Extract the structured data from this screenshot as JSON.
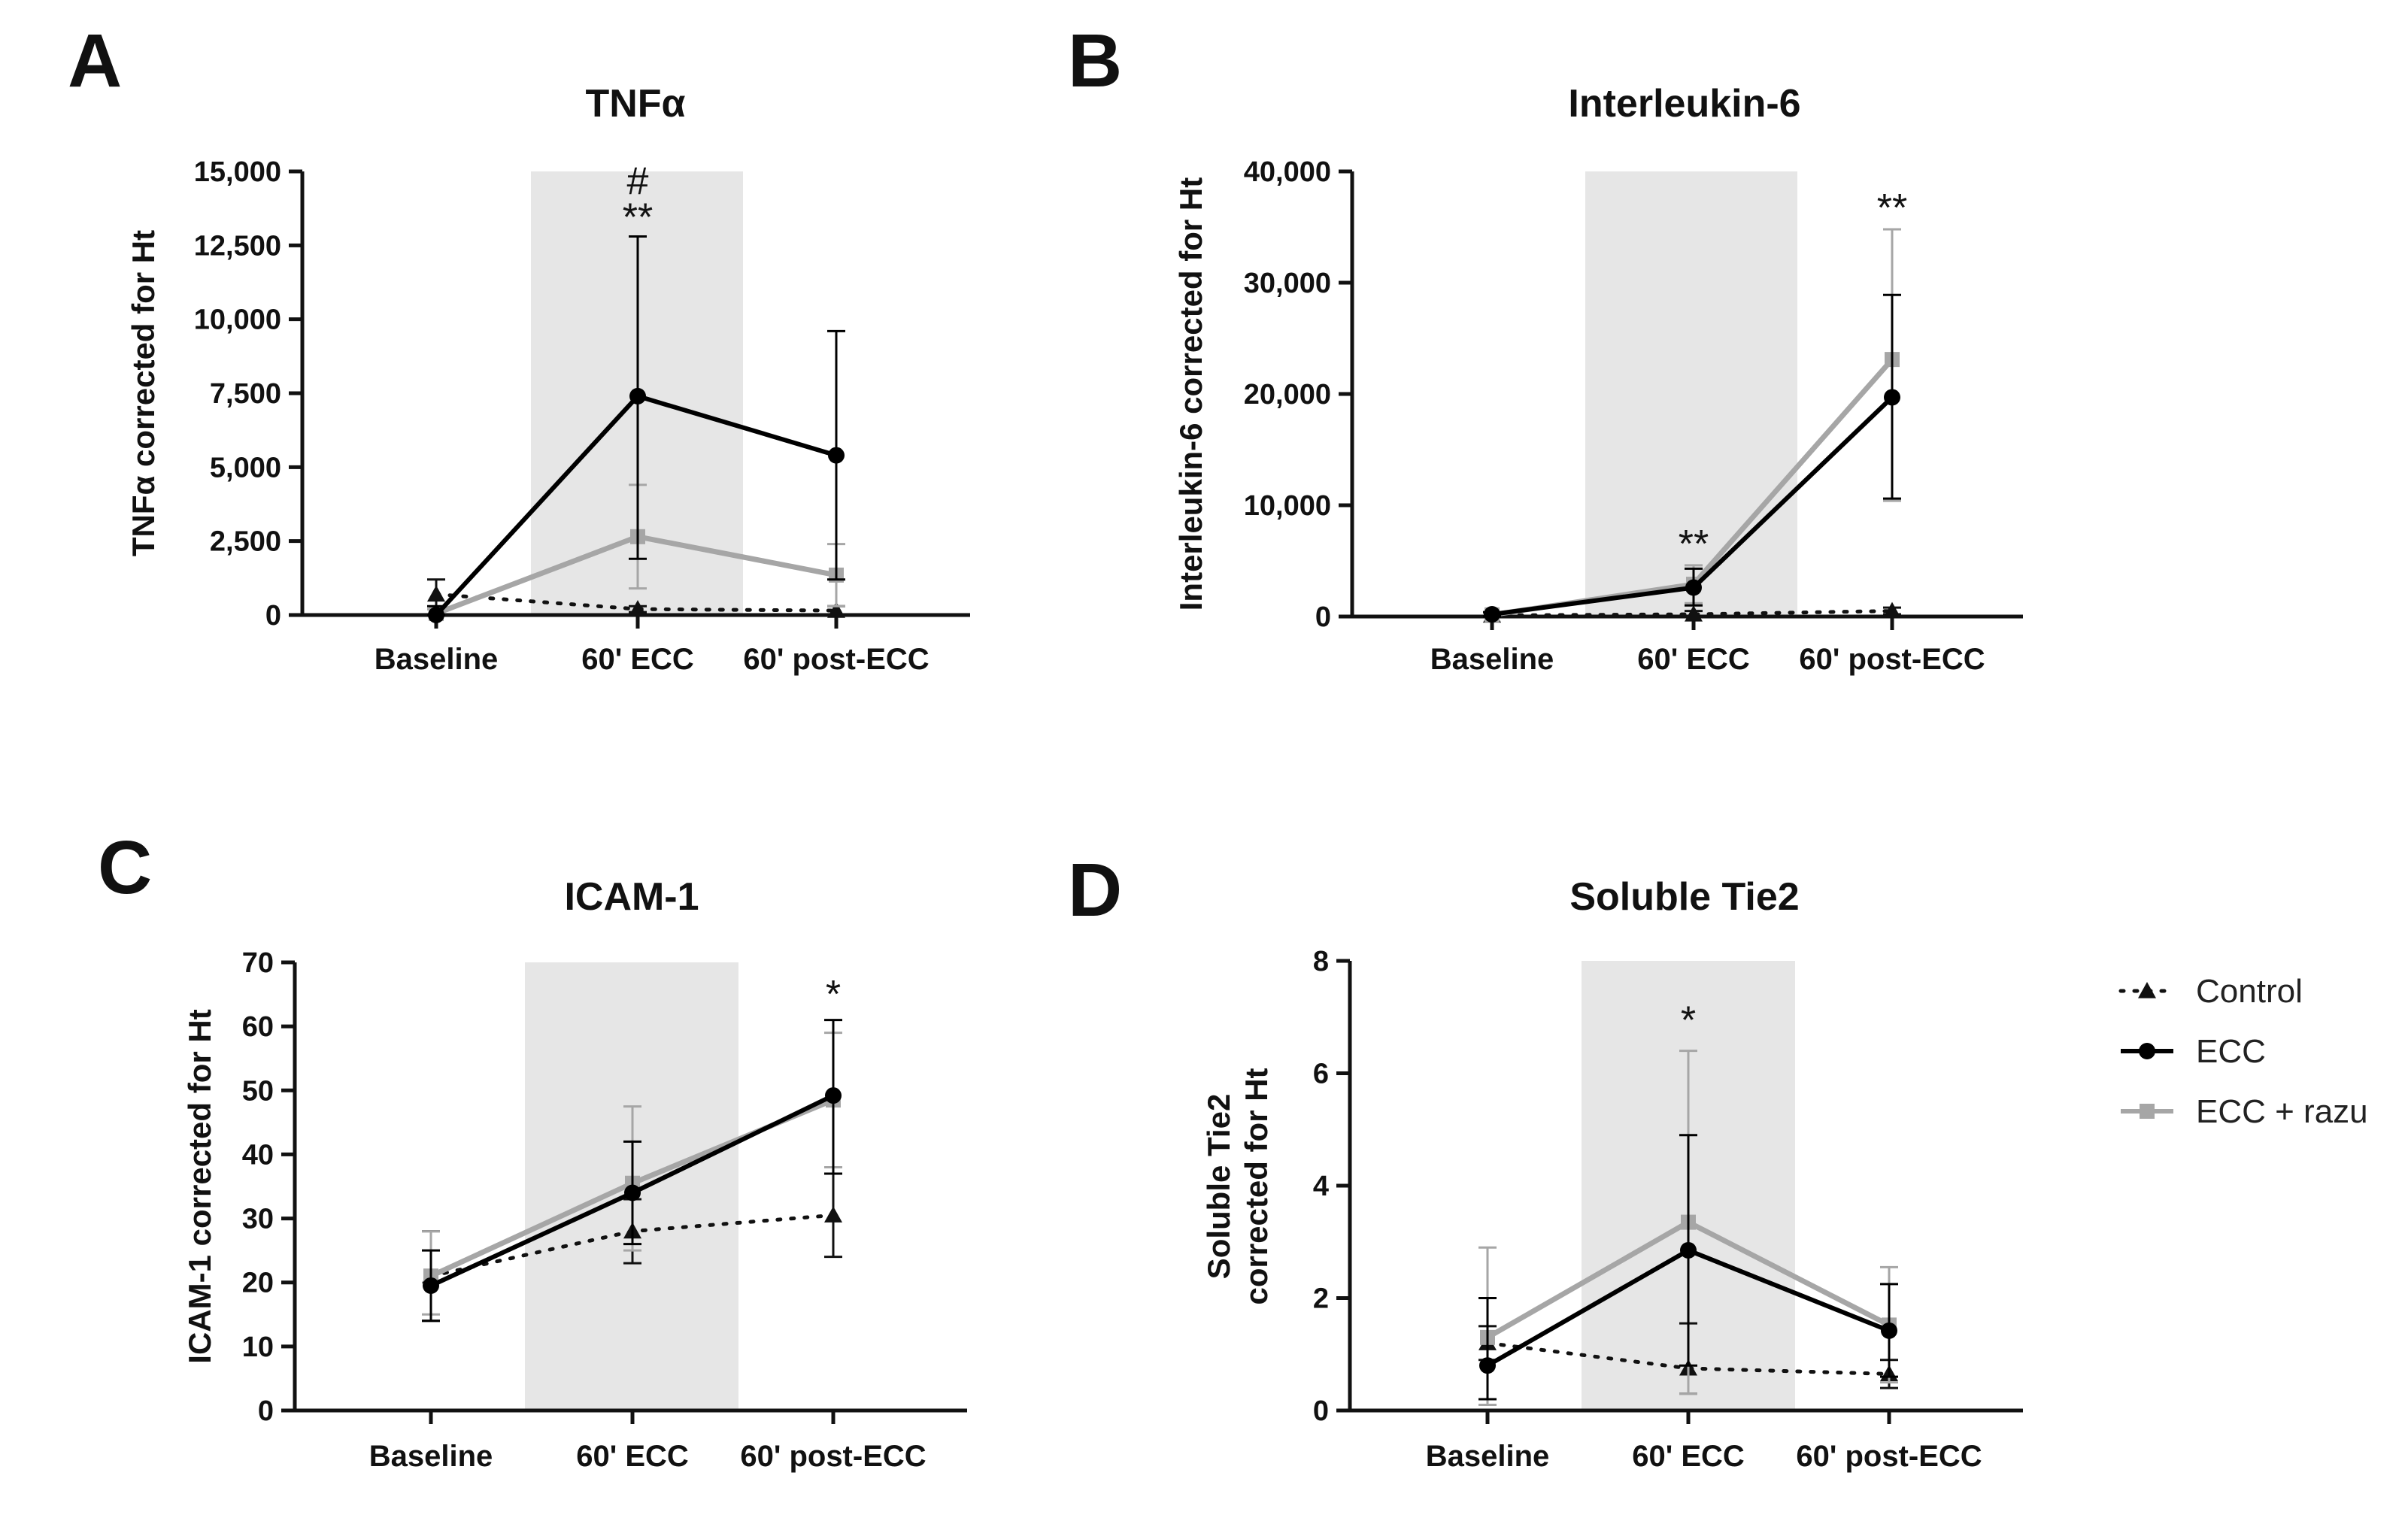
{
  "chart_data": [
    {
      "letter": "A",
      "type": "line",
      "title": "TNFα",
      "ylabel": "TNFα corrected for Ht",
      "ylabel_lines": [
        "TNFα corrected for Ht"
      ],
      "xlabel": "",
      "categories": [
        "Baseline",
        "60' ECC",
        "60' post-ECC"
      ],
      "ylim": [
        0,
        15000
      ],
      "yticks": [
        0,
        2500,
        5000,
        7500,
        10000,
        12500,
        15000
      ],
      "ytick_labels": [
        "0",
        "2,500",
        "5,000",
        "7,500",
        "10,000",
        "12,500",
        "15,000"
      ],
      "shaded_category": "60' ECC",
      "series": [
        {
          "name": "Control",
          "values": [
            700,
            200,
            150
          ],
          "err_hi": [
            1200,
            300,
            300
          ],
          "err_lo": [
            200,
            100,
            0
          ]
        },
        {
          "name": "ECC",
          "values": [
            0,
            7400,
            5400
          ],
          "err_hi": [
            300,
            12800,
            9600
          ],
          "err_lo": [
            0,
            1900,
            1200
          ]
        },
        {
          "name": "ECC + razu",
          "values": [
            50,
            2650,
            1350
          ],
          "err_hi": [
            200,
            4400,
            2400
          ],
          "err_lo": [
            0,
            900,
            300
          ]
        }
      ],
      "annotations": [
        {
          "category": "60' ECC",
          "lines": [
            "#",
            "**"
          ],
          "at_value": 12800
        }
      ]
    },
    {
      "letter": "B",
      "type": "line",
      "title": "Interleukin-6",
      "ylabel": "Interleukin-6 corrected for Ht",
      "ylabel_lines": [
        "Interleukin-6 corrected for Ht"
      ],
      "xlabel": "",
      "categories": [
        "Baseline",
        "60' ECC",
        "60' post-ECC"
      ],
      "ylim": [
        0,
        40000
      ],
      "yticks": [
        0,
        10000,
        20000,
        30000,
        40000
      ],
      "ytick_labels": [
        "0",
        "10,000",
        "20,000",
        "30,000",
        "40,000"
      ],
      "shaded_category": "60' ECC",
      "series": [
        {
          "name": "Control",
          "values": [
            100,
            200,
            500
          ],
          "err_hi": [
            300,
            500,
            800
          ],
          "err_lo": [
            0,
            0,
            200
          ]
        },
        {
          "name": "ECC",
          "values": [
            200,
            2600,
            19700
          ],
          "err_hi": [
            400,
            4300,
            28900
          ],
          "err_lo": [
            0,
            1000,
            10600
          ]
        },
        {
          "name": "ECC + razu",
          "values": [
            150,
            2900,
            23100
          ],
          "err_hi": [
            300,
            4600,
            34800
          ],
          "err_lo": [
            0,
            1200,
            10400
          ]
        }
      ],
      "annotations": [
        {
          "category": "60' ECC",
          "lines": [
            "**"
          ],
          "at_value": 4800
        },
        {
          "category": "60' post-ECC",
          "lines": [
            "**"
          ],
          "at_value": 35000
        }
      ]
    },
    {
      "letter": "C",
      "type": "line",
      "title": "ICAM-1",
      "ylabel": "ICAM-1 corrected for Ht",
      "ylabel_lines": [
        "ICAM-1 corrected for Ht"
      ],
      "xlabel": "",
      "categories": [
        "Baseline",
        "60' ECC",
        "60' post-ECC"
      ],
      "ylim": [
        0,
        70
      ],
      "yticks": [
        0,
        10,
        20,
        30,
        40,
        50,
        60,
        70
      ],
      "ytick_labels": [
        "0",
        "10",
        "20",
        "30",
        "40",
        "50",
        "60",
        "70"
      ],
      "shaded_category": "60' ECC",
      "series": [
        {
          "name": "Control",
          "values": [
            21,
            28,
            30.5
          ],
          "err_hi": [
            28,
            33,
            37
          ],
          "err_lo": [
            14,
            23,
            24
          ]
        },
        {
          "name": "ECC",
          "values": [
            19.5,
            34,
            49.2
          ],
          "err_hi": [
            25,
            42,
            61
          ],
          "err_lo": [
            14,
            26,
            37
          ]
        },
        {
          "name": "ECC + razu",
          "values": [
            21,
            35.5,
            48.5
          ],
          "err_hi": [
            28,
            47.5,
            59
          ],
          "err_lo": [
            15,
            25,
            38
          ]
        }
      ],
      "annotations": [
        {
          "category": "60' post-ECC",
          "lines": [
            "*"
          ],
          "at_value": 62
        }
      ]
    },
    {
      "letter": "D",
      "type": "line",
      "title": "Soluble Tie2",
      "ylabel": "Soluble Tie2 corrected for Ht",
      "ylabel_lines": [
        "Soluble Tie2",
        "corrected for Ht"
      ],
      "xlabel": "",
      "categories": [
        "Baseline",
        "60' ECC",
        "60' post-ECC"
      ],
      "ylim": [
        0,
        8
      ],
      "yticks": [
        0,
        2,
        4,
        6,
        8
      ],
      "ytick_labels": [
        "0",
        "2",
        "4",
        "6",
        "8"
      ],
      "shaded_category": "60' ECC",
      "series": [
        {
          "name": "Control",
          "values": [
            1.2,
            0.75,
            0.65
          ],
          "err_hi": [
            1.5,
            1.55,
            0.9
          ],
          "err_lo": [
            0.9,
            0.3,
            0.4
          ]
        },
        {
          "name": "ECC",
          "values": [
            0.8,
            2.85,
            1.42
          ],
          "err_hi": [
            2.0,
            4.9,
            2.25
          ],
          "err_lo": [
            0.2,
            0.8,
            0.6
          ]
        },
        {
          "name": "ECC + razu",
          "values": [
            1.3,
            3.35,
            1.52
          ],
          "err_hi": [
            2.9,
            6.4,
            2.55
          ],
          "err_lo": [
            0.1,
            0.3,
            0.5
          ]
        }
      ],
      "annotations": [
        {
          "category": "60' ECC",
          "lines": [
            "*"
          ],
          "at_value": 6.6
        }
      ]
    }
  ],
  "legend": {
    "placement": "right",
    "items": [
      {
        "name": "Control",
        "label": "Control",
        "color": "#111111",
        "style": "dotted",
        "marker": "triangle"
      },
      {
        "name": "ECC",
        "label": "ECC",
        "color": "#000000",
        "style": "solid",
        "marker": "circle"
      },
      {
        "name": "ECC + razu",
        "label": "ECC + razu",
        "color": "#a6a6a6",
        "style": "solid",
        "marker": "square"
      }
    ]
  },
  "colors": {
    "control": "#111111",
    "ecc": "#000000",
    "ecc_razu": "#a6a6a6",
    "shade": "#e6e6e6",
    "axis": "#111111"
  }
}
